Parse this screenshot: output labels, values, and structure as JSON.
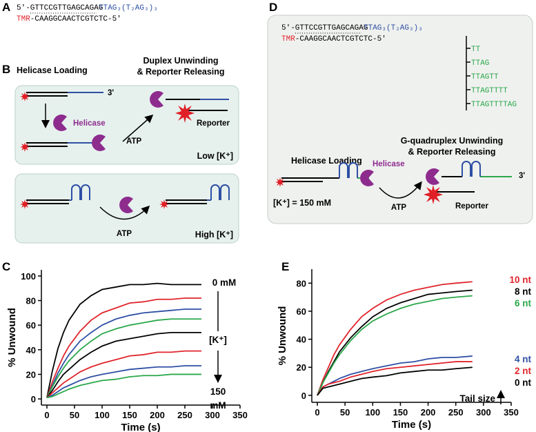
{
  "panels": {
    "A": {
      "label": "A",
      "strand_top": "5'-GTTCCGTTGAGCAGAG",
      "overhang": "TTAG₃(T₂AG₃)₃",
      "dye": "TMR",
      "strand_bottom": "-CAAGGCAACTCGTCTC-5'"
    },
    "B": {
      "label": "B",
      "loading": "Helicase Loading",
      "unwinding": [
        "Duplex Unwinding",
        "& Reporter Releasing"
      ],
      "end": "3'",
      "helicase": "Helicase",
      "atp": "ATP",
      "reporter": "Reporter",
      "low": "Low [K⁺]",
      "atp_high": "ATP",
      "high": "High [K⁺]"
    },
    "D": {
      "label": "D",
      "strand_top": "5'-GTTCCGTTGAGCAGAG",
      "overhang": "TTAG₃(T₂AG₃)₃",
      "dye": "TMR",
      "strand_bottom": "-CAAGGCAACTCGTCTC-5'",
      "tails": [
        "TT",
        "TTAG",
        "TTAGTT",
        "TTAGTTTT",
        "TTAGTTTTAG"
      ],
      "loading": "Helicase Loading",
      "unwinding": [
        "G-quadruplex Unwinding",
        "& Reporter Releasing"
      ],
      "helicase": "Helicase",
      "end": "3'",
      "atp": "ATP",
      "reporter": "Reporter",
      "condition": "[K⁺] = 150 mM"
    }
  },
  "chart_data": [
    {
      "type": "line",
      "label": "C",
      "x_label": "Time (s)",
      "y_label": "% Unwound",
      "x": [
        0,
        10,
        20,
        30,
        40,
        60,
        80,
        100,
        125,
        150,
        175,
        200,
        225,
        250,
        280
      ],
      "xlim": [
        -10,
        350
      ],
      "xticks": [
        0,
        50,
        100,
        150,
        200,
        250,
        300,
        350
      ],
      "ylim": [
        -5,
        105
      ],
      "yticks": [
        0,
        20,
        40,
        60,
        80,
        100
      ],
      "annotations": [
        "0 mM",
        "[K⁺]",
        "150",
        "mM"
      ],
      "series": [
        {
          "color": "#000000",
          "values": [
            1,
            23,
            41,
            54,
            64,
            77,
            84,
            89,
            91,
            93,
            93,
            94,
            93,
            93,
            93
          ]
        },
        {
          "color": "#e0242b",
          "values": [
            1,
            14,
            25,
            35,
            43,
            55,
            64,
            70,
            74,
            78,
            79,
            81,
            81,
            82,
            82
          ]
        },
        {
          "color": "#2e4fa3",
          "values": [
            1,
            11,
            21,
            29,
            36,
            47,
            54,
            60,
            65,
            68,
            70,
            71,
            72,
            73,
            73
          ]
        },
        {
          "color": "#2aa84a",
          "values": [
            1,
            10,
            18,
            25,
            31,
            40,
            47,
            53,
            57,
            60,
            62,
            64,
            65,
            65,
            65
          ]
        },
        {
          "color": "#000000",
          "values": [
            1,
            7,
            14,
            20,
            24,
            32,
            38,
            43,
            47,
            49,
            51,
            53,
            54,
            54,
            54
          ]
        },
        {
          "color": "#e0242b",
          "values": [
            1,
            5,
            9,
            13,
            16,
            22,
            26,
            29,
            32,
            35,
            36,
            38,
            38,
            39,
            39
          ]
        },
        {
          "color": "#2e4fa3",
          "values": [
            1,
            3,
            6,
            9,
            11,
            15,
            18,
            20,
            22,
            24,
            25,
            26,
            26,
            27,
            27
          ]
        },
        {
          "color": "#2aa84a",
          "values": [
            1,
            2,
            4,
            6,
            8,
            11,
            13,
            15,
            16,
            18,
            19,
            19,
            20,
            20,
            20
          ]
        }
      ]
    },
    {
      "type": "line",
      "label": "E",
      "x_label": "Time (s)",
      "y_label": "% Unwound",
      "x": [
        0,
        10,
        20,
        30,
        40,
        60,
        80,
        100,
        125,
        150,
        175,
        200,
        225,
        250,
        280
      ],
      "xlim": [
        -10,
        350
      ],
      "xticks": [
        0,
        50,
        100,
        150,
        200,
        250,
        300,
        350
      ],
      "ylim": [
        -5,
        90
      ],
      "yticks": [
        0,
        20,
        40,
        60,
        80
      ],
      "annotations": [
        "Tail size"
      ],
      "series": [
        {
          "name": "10 nt",
          "color": "#e0242b",
          "values": [
            0,
            11,
            20,
            29,
            36,
            47,
            56,
            62,
            68,
            72,
            75,
            77,
            79,
            80,
            81
          ]
        },
        {
          "name": "8 nt",
          "color": "#000000",
          "values": [
            0,
            9,
            17,
            24,
            31,
            41,
            49,
            56,
            62,
            66,
            69,
            72,
            73,
            74,
            75
          ]
        },
        {
          "name": "6 nt",
          "color": "#2aa84a",
          "values": [
            0,
            9,
            16,
            23,
            29,
            39,
            47,
            53,
            58,
            62,
            65,
            67,
            69,
            70,
            71
          ]
        },
        {
          "name": "4 nt",
          "color": "#2e4fa3",
          "values": [
            0,
            6,
            8,
            10,
            12,
            15,
            17,
            19,
            21,
            23,
            24,
            26,
            27,
            27,
            28
          ]
        },
        {
          "name": "2 nt",
          "color": "#e0242b",
          "values": [
            0,
            6,
            8,
            9,
            10,
            13,
            15,
            17,
            19,
            20,
            21,
            22,
            23,
            24,
            24
          ]
        },
        {
          "name": "0 nt",
          "color": "#000000",
          "values": [
            0,
            5,
            6,
            7,
            8,
            10,
            12,
            13,
            14,
            16,
            17,
            18,
            18,
            19,
            20
          ]
        }
      ]
    }
  ]
}
